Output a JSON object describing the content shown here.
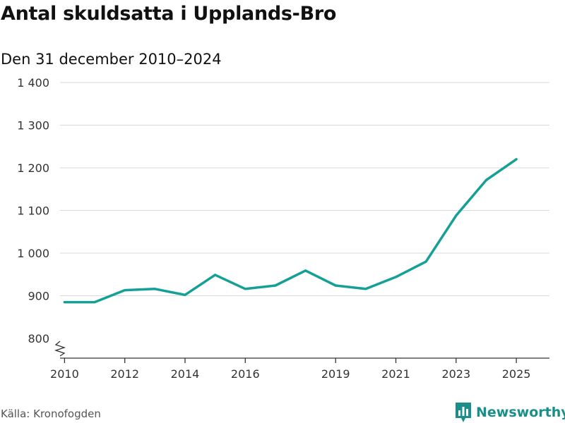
{
  "chart_data": {
    "type": "line",
    "title": "Antal skuldsatta i Upplands-Bro",
    "subtitle": "Den 31 december 2010–2024",
    "xlabel": "",
    "ylabel": "",
    "x": [
      2010,
      2011,
      2012,
      2013,
      2014,
      2015,
      2016,
      2017,
      2018,
      2019,
      2020,
      2021,
      2022,
      2023,
      2024,
      2025
    ],
    "series": [
      {
        "name": "Antal skuldsatta",
        "values": [
          885,
          885,
          913,
          916,
          902,
          949,
          916,
          924,
          959,
          924,
          916,
          944,
          980,
          1088,
          1171,
          1220
        ]
      }
    ],
    "x_ticks": [
      2010,
      2012,
      2014,
      2016,
      2019,
      2021,
      2023,
      2025
    ],
    "x_tick_labels": [
      "2010",
      "2012",
      "2014",
      "2016",
      "2019",
      "2021",
      "2023",
      "2025"
    ],
    "y_ticks": [
      800,
      900,
      1000,
      1100,
      1200,
      1300,
      1400
    ],
    "y_tick_labels": [
      "800",
      "900",
      "1 000",
      "1 100",
      "1 200",
      "1 300",
      "1 400"
    ],
    "xlim": [
      2009.85,
      2026.1
    ],
    "ylim": [
      800,
      1400
    ],
    "axis_break": true,
    "grid": true,
    "line_color": "#14a095"
  },
  "source": "Källa: Kronofogden",
  "brand": {
    "name": "Newsworthy",
    "color": "#1a8f8a",
    "icon": "newsworthy-logo-icon"
  }
}
